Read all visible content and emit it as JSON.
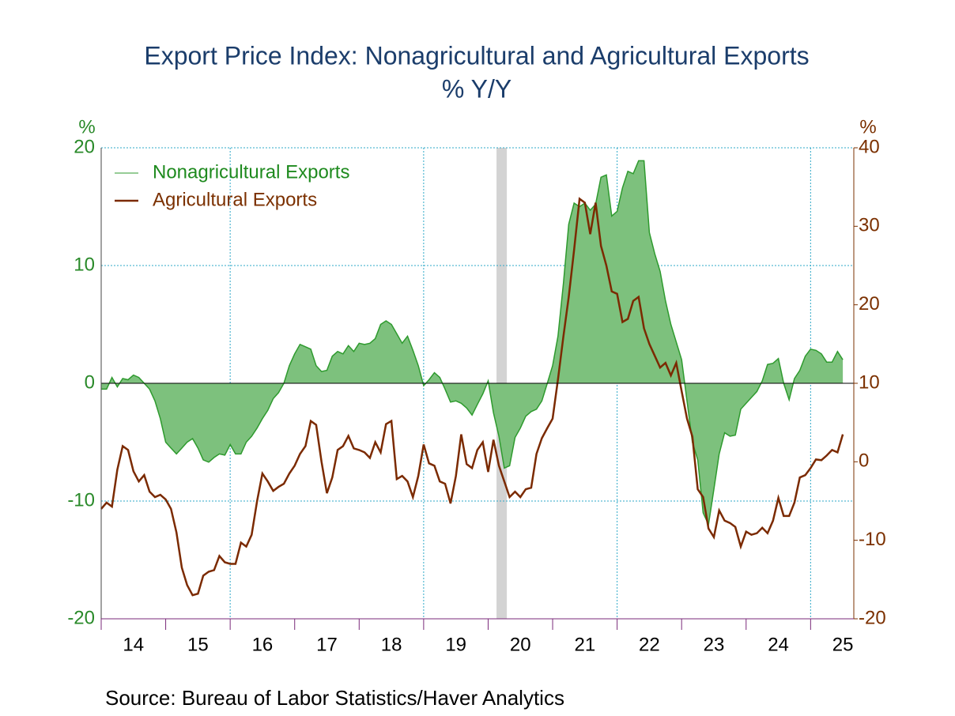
{
  "chart_data": {
    "type": "line",
    "title": "Export Price Index: Nonagricultural and Agricultural Exports",
    "subtitle": "% Y/Y",
    "ylabel": "%",
    "y2label": "%",
    "source": "Source:  Bureau of Labor Statistics/Haver Analytics",
    "xlim": [
      2014,
      2025.67
    ],
    "xticks": [
      {
        "value": 2014,
        "label": "14"
      },
      {
        "value": 2015,
        "label": "15"
      },
      {
        "value": 2016,
        "label": "16"
      },
      {
        "value": 2017,
        "label": "17"
      },
      {
        "value": 2018,
        "label": "18"
      },
      {
        "value": 2019,
        "label": "19"
      },
      {
        "value": 2020,
        "label": "20"
      },
      {
        "value": 2021,
        "label": "21"
      },
      {
        "value": 2022,
        "label": "22"
      },
      {
        "value": 2023,
        "label": "23"
      },
      {
        "value": 2024,
        "label": "24"
      },
      {
        "value": 2025,
        "label": "25"
      }
    ],
    "xgrid": [
      2016,
      2019,
      2022,
      2025
    ],
    "ylim": [
      -20,
      20
    ],
    "yticks": [
      -20,
      -10,
      0,
      10,
      20
    ],
    "y2lim": [
      -20,
      40
    ],
    "y2ticks": [
      -20,
      -10,
      0,
      10,
      20,
      30,
      40
    ],
    "grid": true,
    "recession": [
      2020.13,
      2020.29
    ],
    "legend": "upper left",
    "x": [
      2014,
      2014.083,
      2014.167,
      2014.25,
      2014.333,
      2014.417,
      2014.5,
      2014.583,
      2014.667,
      2014.75,
      2014.833,
      2014.917,
      2015,
      2015.083,
      2015.167,
      2015.25,
      2015.333,
      2015.417,
      2015.5,
      2015.583,
      2015.667,
      2015.75,
      2015.833,
      2015.917,
      2016,
      2016.083,
      2016.167,
      2016.25,
      2016.333,
      2016.417,
      2016.5,
      2016.583,
      2016.667,
      2016.75,
      2016.833,
      2016.917,
      2017,
      2017.083,
      2017.167,
      2017.25,
      2017.333,
      2017.417,
      2017.5,
      2017.583,
      2017.667,
      2017.75,
      2017.833,
      2017.917,
      2018,
      2018.083,
      2018.167,
      2018.25,
      2018.333,
      2018.417,
      2018.5,
      2018.583,
      2018.667,
      2018.75,
      2018.833,
      2018.917,
      2019,
      2019.083,
      2019.167,
      2019.25,
      2019.333,
      2019.417,
      2019.5,
      2019.583,
      2019.667,
      2019.75,
      2019.833,
      2019.917,
      2020,
      2020.083,
      2020.167,
      2020.25,
      2020.333,
      2020.417,
      2020.5,
      2020.583,
      2020.667,
      2020.75,
      2020.833,
      2020.917,
      2021,
      2021.083,
      2021.167,
      2021.25,
      2021.333,
      2021.417,
      2021.5,
      2021.583,
      2021.667,
      2021.75,
      2021.833,
      2021.917,
      2022,
      2022.083,
      2022.167,
      2022.25,
      2022.333,
      2022.417,
      2022.5,
      2022.583,
      2022.667,
      2022.75,
      2022.833,
      2022.917,
      2023,
      2023.083,
      2023.167,
      2023.25,
      2023.333,
      2023.417,
      2023.5,
      2023.583,
      2023.667,
      2023.75,
      2023.833,
      2023.917,
      2024,
      2024.083,
      2024.167,
      2024.25,
      2024.333,
      2024.417,
      2024.5,
      2024.583,
      2024.667,
      2024.75,
      2024.833,
      2024.917,
      2025,
      2025.083,
      2025.167,
      2025.25,
      2025.333,
      2025.417,
      2025.5
    ],
    "series": [
      {
        "name": "Nonagricultural Exports",
        "color": "#2e9a2e",
        "fill": "#7dc17d",
        "axis": "y",
        "values": [
          -0.5,
          -0.5,
          0.5,
          -0.3,
          0.4,
          0.3,
          0.7,
          0.5,
          0,
          -0.5,
          -1.5,
          -3,
          -5,
          -5.5,
          -6,
          -5.5,
          -5,
          -4.7,
          -5.5,
          -6.5,
          -6.7,
          -6.3,
          -6,
          -6.1,
          -5.2,
          -6,
          -6,
          -5,
          -4.5,
          -3.8,
          -3,
          -2.3,
          -1.3,
          -0.8,
          0,
          1.5,
          2.5,
          3.3,
          3.1,
          2.9,
          1.5,
          1,
          1.1,
          2.3,
          2.7,
          2.5,
          3.2,
          2.7,
          3.4,
          3.3,
          3.4,
          3.8,
          5,
          5.3,
          5,
          4.2,
          3.4,
          4,
          2.8,
          1.5,
          -0.2,
          0.3,
          0.9,
          0.5,
          -0.5,
          -1.6,
          -1.5,
          -1.7,
          -2.1,
          -2.7,
          -1.8,
          -0.9,
          0.2,
          -2.5,
          -4.5,
          -7.2,
          -7,
          -4.6,
          -3.8,
          -2.8,
          -2.4,
          -2.2,
          -1.5,
          0,
          1.5,
          4,
          8.5,
          13.5,
          15.3,
          15,
          15.3,
          14.7,
          15.2,
          17.5,
          17.7,
          14.2,
          14.6,
          16.6,
          18,
          17.8,
          18.9,
          18.9,
          12.8,
          11,
          9.5,
          7,
          5,
          3.5,
          2,
          -1.5,
          -5,
          -6.5,
          -11,
          -12,
          -9,
          -6,
          -4.2,
          -4.5,
          -4.4,
          -2.2,
          -1.7,
          -1.2,
          -0.7,
          0.2,
          1.6,
          1.7,
          2.1,
          0,
          -1.4,
          0.4,
          1.1,
          2.3,
          2.9,
          2.8,
          2.5,
          1.8,
          1.8,
          2.7,
          2.0
        ]
      },
      {
        "name": "Agricultural Exports",
        "color": "#7b2a00",
        "axis": "y2",
        "values": [
          -6,
          -5.2,
          -5.7,
          -1,
          2,
          1.5,
          -1.2,
          -2.5,
          -1.7,
          -3.8,
          -4.5,
          -4.2,
          -4.8,
          -6,
          -9,
          -13.5,
          -15.7,
          -17,
          -16.8,
          -14.5,
          -14,
          -13.8,
          -12,
          -12.8,
          -13,
          -13,
          -10.3,
          -10.8,
          -9.3,
          -5,
          -1.5,
          -2.5,
          -3.7,
          -3.2,
          -2.8,
          -1.5,
          -0.5,
          1,
          2,
          5.2,
          4.7,
          0,
          -4,
          -2,
          1.5,
          2,
          3.3,
          1.7,
          1.5,
          1.2,
          0.5,
          2.5,
          1.2,
          4.8,
          5.2,
          -2.2,
          -1.8,
          -2.5,
          -4.5,
          -1.8,
          2.2,
          -0.2,
          -0.5,
          -2.5,
          -2.8,
          -5.3,
          -1.8,
          3.5,
          -0.3,
          -0.8,
          1.5,
          2.5,
          -1.3,
          2.8,
          -0.5,
          -2.5,
          -4.5,
          -3.8,
          -4.5,
          -3.5,
          -3.3,
          1,
          3,
          4.3,
          5.5,
          10.5,
          16,
          21,
          27,
          33.5,
          33,
          29,
          33,
          27.5,
          25,
          21.7,
          21.4,
          17.8,
          18.2,
          20.5,
          21,
          17,
          15,
          13.5,
          12,
          12.6,
          11,
          12.6,
          9,
          5.5,
          3.2,
          -3.5,
          -4.5,
          -8.5,
          -9.6,
          -6.2,
          -7.5,
          -7.8,
          -8.3,
          -10.8,
          -8.9,
          -9.3,
          -9.1,
          -8.4,
          -9.1,
          -7.5,
          -4.6,
          -6.9,
          -6.9,
          -5.2,
          -2,
          -1.7,
          -0.8,
          0.3,
          0.2,
          0.8,
          1.5,
          1.2,
          3.5
        ]
      }
    ]
  }
}
